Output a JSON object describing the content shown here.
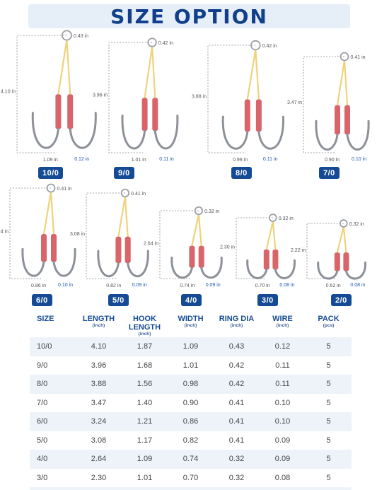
{
  "title": "SIZE OPTION",
  "colors": {
    "brand": "#154b95",
    "title": "#123f8c",
    "cord": "#efd27a",
    "sleeve": "#d9646a",
    "hook_steel": "#8c9198",
    "wire_label": "#1f58b0"
  },
  "hooks": [
    {
      "size": "10/0",
      "length": "4.10 in",
      "ring": "0.43 in",
      "width": "1.09 in",
      "wire": "0.12 in"
    },
    {
      "size": "9/0",
      "length": "3.96 in",
      "ring": "0.42 in",
      "width": "1.01 in",
      "wire": "0.11 in"
    },
    {
      "size": "8/0",
      "length": "3.88 in",
      "ring": "0.42 in",
      "width": "0.98 in",
      "wire": "0.11 in"
    },
    {
      "size": "7/0",
      "length": "3.47 in",
      "ring": "0.41 in",
      "width": "0.90 in",
      "wire": "0.10 in"
    },
    {
      "size": "6/0",
      "length": "3.24 in",
      "ring": "0.41 in",
      "width": "0.86 in",
      "wire": "0.10 in"
    },
    {
      "size": "5/0",
      "length": "3.08 in",
      "ring": "0.41 in",
      "width": "0.82 in",
      "wire": "0.09 in"
    },
    {
      "size": "4/0",
      "length": "2.64 in",
      "ring": "0.32 in",
      "width": "0.74 in",
      "wire": "0.09 in"
    },
    {
      "size": "3/0",
      "length": "2.30 in",
      "ring": "0.32 in",
      "width": "0.70 in",
      "wire": "0.08 in"
    },
    {
      "size": "2/0",
      "length": "2.22 in",
      "ring": "0.32 in",
      "width": "0.62 in",
      "wire": "0.08 in"
    }
  ],
  "table": {
    "headers": [
      {
        "label": "SIZE",
        "unit": ""
      },
      {
        "label": "LENGTH",
        "unit": "(inch)"
      },
      {
        "label": "HOOK LENGTH",
        "unit": "(inch)"
      },
      {
        "label": "WIDTH",
        "unit": "(inch)"
      },
      {
        "label": "RING DIA",
        "unit": "(inch)"
      },
      {
        "label": "WIRE",
        "unit": "(inch)"
      },
      {
        "label": "PACK",
        "unit": "(pcs)"
      }
    ],
    "rows": [
      [
        "10/0",
        "4.10",
        "1.87",
        "1.09",
        "0.43",
        "0.12",
        "5"
      ],
      [
        "9/0",
        "3.96",
        "1.68",
        "1.01",
        "0.42",
        "0.11",
        "5"
      ],
      [
        "8/0",
        "3.88",
        "1.56",
        "0.98",
        "0.42",
        "0.11",
        "5"
      ],
      [
        "7/0",
        "3.47",
        "1.40",
        "0.90",
        "0.41",
        "0.10",
        "5"
      ],
      [
        "6/0",
        "3.24",
        "1.21",
        "0.86",
        "0.41",
        "0.10",
        "5"
      ],
      [
        "5/0",
        "3.08",
        "1.17",
        "0.82",
        "0.41",
        "0.09",
        "5"
      ],
      [
        "4/0",
        "2.64",
        "1.09",
        "0.74",
        "0.32",
        "0.09",
        "5"
      ],
      [
        "3/0",
        "2.30",
        "1.01",
        "0.70",
        "0.32",
        "0.08",
        "5"
      ],
      [
        "2/0",
        "2.22",
        "0.94",
        "0.62",
        "0.32",
        "0.08",
        "5"
      ]
    ]
  }
}
